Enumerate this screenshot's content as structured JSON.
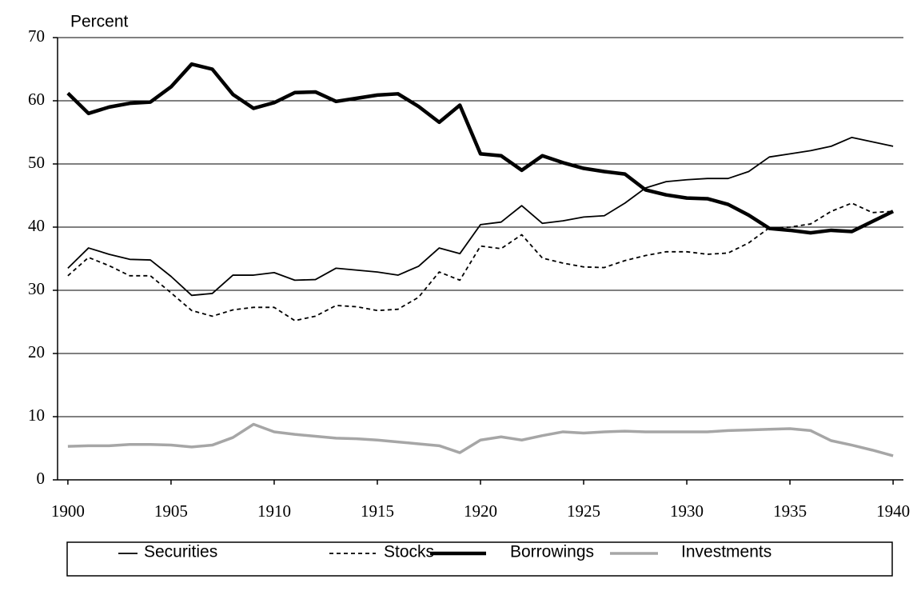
{
  "chart_data": {
    "type": "line",
    "y_label": "Percent",
    "x": [
      1900,
      1901,
      1902,
      1903,
      1904,
      1905,
      1906,
      1907,
      1908,
      1909,
      1910,
      1911,
      1912,
      1913,
      1914,
      1915,
      1916,
      1917,
      1918,
      1919,
      1920,
      1921,
      1922,
      1923,
      1924,
      1925,
      1926,
      1927,
      1928,
      1929,
      1930,
      1931,
      1932,
      1933,
      1934,
      1935,
      1936,
      1937,
      1938,
      1939,
      1940
    ],
    "xlim": [
      1899.5,
      1940.5
    ],
    "xticks": [
      1900,
      1905,
      1910,
      1915,
      1920,
      1925,
      1930,
      1935,
      1940
    ],
    "ylim": [
      0,
      70
    ],
    "yticks": [
      0,
      10,
      20,
      30,
      40,
      50,
      60,
      70
    ],
    "grid": true,
    "legend": "bottom",
    "series": [
      {
        "name": "Securities",
        "color": "#000000",
        "values": [
          33.5,
          36.7,
          35.7,
          34.9,
          34.8,
          32.2,
          29.2,
          29.5,
          32.4,
          32.4,
          32.8,
          31.6,
          31.7,
          33.5,
          33.2,
          32.9,
          32.4,
          33.8,
          36.7,
          35.8,
          40.4,
          40.8,
          43.4,
          40.6,
          41.0,
          41.6,
          41.8,
          43.8,
          46.2,
          47.2,
          47.5,
          47.7,
          47.7,
          48.8,
          51.1,
          51.6,
          52.1,
          52.8,
          54.2,
          53.5,
          52.8
        ]
      },
      {
        "name": "Stocks",
        "color": "#000000",
        "dashed": true,
        "values": [
          32.3,
          35.2,
          33.9,
          32.3,
          32.3,
          29.6,
          26.8,
          25.9,
          26.9,
          27.3,
          27.3,
          25.2,
          25.9,
          27.6,
          27.4,
          26.8,
          27.0,
          28.9,
          32.9,
          31.6,
          37.0,
          36.6,
          38.8,
          35.1,
          34.3,
          33.7,
          33.6,
          34.7,
          35.5,
          36.1,
          36.1,
          35.7,
          35.9,
          37.5,
          39.9,
          40.0,
          40.5,
          42.5,
          43.8,
          42.3,
          42.5
        ]
      },
      {
        "name": "Borrowings",
        "color": "#000000",
        "values": [
          61.2,
          58.0,
          59.0,
          59.6,
          59.8,
          62.2,
          65.8,
          65.0,
          61.0,
          58.8,
          59.7,
          61.3,
          61.4,
          59.9,
          60.4,
          60.9,
          61.1,
          59.1,
          56.6,
          59.3,
          51.6,
          51.3,
          49.0,
          51.3,
          50.2,
          49.3,
          48.8,
          48.4,
          45.9,
          45.1,
          44.6,
          44.5,
          43.6,
          41.9,
          39.8,
          39.5,
          39.1,
          39.5,
          39.3,
          40.9,
          42.5
        ]
      },
      {
        "name": "Investments",
        "color": "#a6a6a6",
        "values": [
          5.3,
          5.4,
          5.4,
          5.6,
          5.6,
          5.5,
          5.2,
          5.5,
          6.7,
          8.8,
          7.6,
          7.2,
          6.9,
          6.6,
          6.5,
          6.3,
          6.0,
          5.7,
          5.4,
          4.3,
          6.3,
          6.8,
          6.3,
          7.0,
          7.6,
          7.4,
          7.6,
          7.7,
          7.6,
          7.6,
          7.6,
          7.6,
          7.8,
          7.9,
          8.0,
          8.1,
          7.8,
          6.2,
          5.5,
          4.7,
          3.8
        ]
      }
    ]
  }
}
